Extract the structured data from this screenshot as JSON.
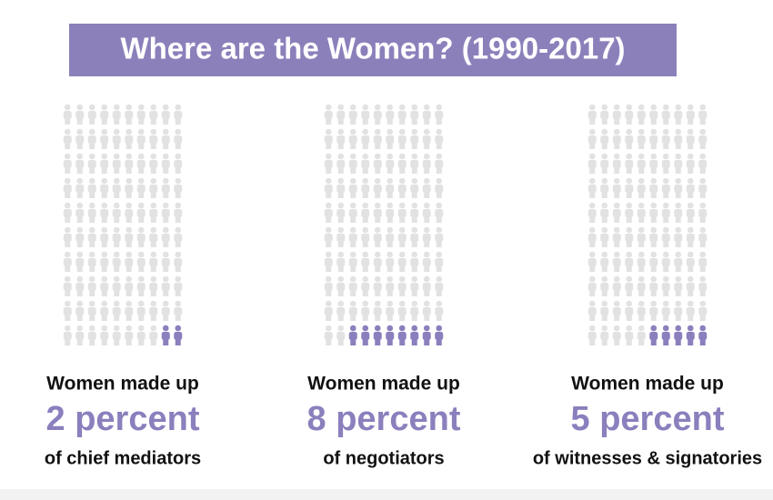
{
  "chart_data": {
    "type": "pictogram",
    "title": "Where are the Women? (1990-2017)",
    "leads": [
      "Women made up",
      "Women made up",
      "Women made up"
    ],
    "values": [
      2,
      8,
      5
    ],
    "value_labels": [
      "2 percent",
      "8 percent",
      "5 percent"
    ],
    "categories": [
      "of chief mediators",
      "of negotiators",
      "of witnesses & signatories"
    ],
    "color": "#8b7fbd",
    "base_color": "#e2e2e2"
  }
}
